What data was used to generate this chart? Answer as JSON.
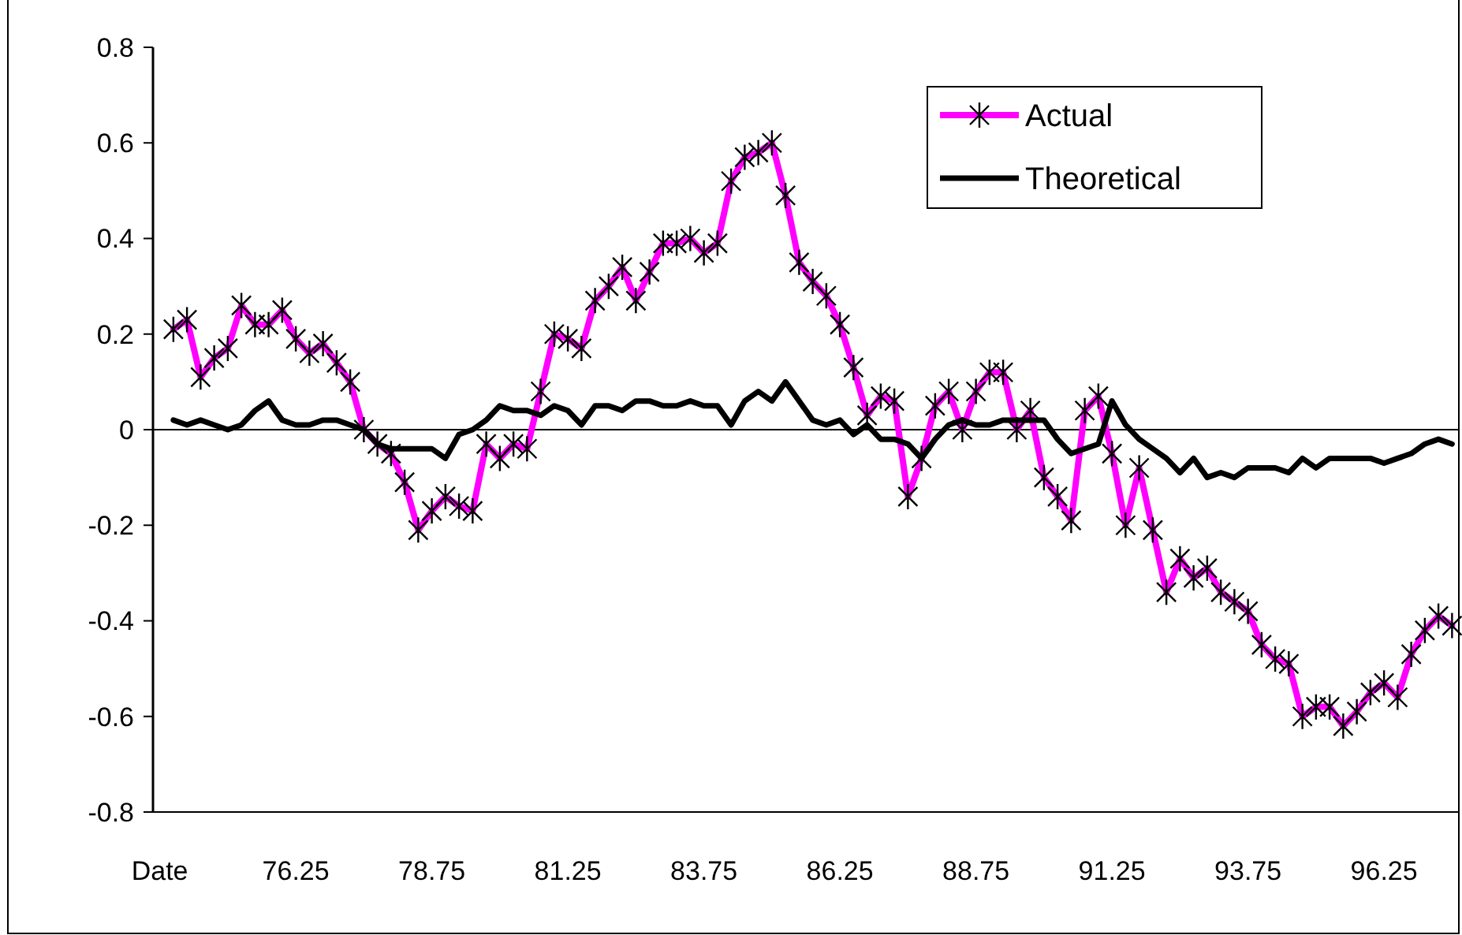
{
  "chart_data": {
    "type": "line",
    "categories": [
      "Date",
      null,
      null,
      null,
      null,
      null,
      null,
      null,
      null,
      null,
      "76.25",
      null,
      null,
      null,
      null,
      null,
      null,
      null,
      null,
      null,
      "78.75",
      null,
      null,
      null,
      null,
      null,
      null,
      null,
      null,
      null,
      "81.25",
      null,
      null,
      null,
      null,
      null,
      null,
      null,
      null,
      null,
      "83.75",
      null,
      null,
      null,
      null,
      null,
      null,
      null,
      null,
      null,
      "86.25",
      null,
      null,
      null,
      null,
      null,
      null,
      null,
      null,
      null,
      "88.75",
      null,
      null,
      null,
      null,
      null,
      null,
      null,
      null,
      null,
      "91.25",
      null,
      null,
      null,
      null,
      null,
      null,
      null,
      null,
      null,
      "93.75",
      null,
      null,
      null,
      null,
      null,
      null,
      null,
      null,
      null,
      "96.25",
      null,
      null,
      null,
      null,
      null
    ],
    "series": [
      {
        "name": "Actual",
        "color": "#ff00ff",
        "marker": "cross",
        "values": [
          null,
          0.21,
          0.23,
          0.11,
          0.15,
          0.17,
          0.26,
          0.22,
          0.22,
          0.25,
          0.19,
          0.16,
          0.18,
          0.14,
          0.1,
          0.0,
          -0.03,
          -0.05,
          -0.11,
          -0.21,
          -0.17,
          -0.14,
          -0.16,
          -0.17,
          -0.03,
          -0.06,
          -0.03,
          -0.04,
          0.08,
          0.2,
          0.19,
          0.17,
          0.27,
          0.3,
          0.34,
          0.27,
          0.33,
          0.39,
          0.39,
          0.4,
          0.37,
          0.39,
          0.52,
          0.57,
          0.58,
          0.6,
          0.49,
          0.35,
          0.31,
          0.28,
          0.22,
          0.13,
          0.03,
          0.07,
          0.06,
          -0.14,
          -0.06,
          0.05,
          0.08,
          0.0,
          0.08,
          0.12,
          0.12,
          0.0,
          0.04,
          -0.1,
          -0.14,
          -0.19,
          0.04,
          0.07,
          -0.05,
          -0.2,
          -0.08,
          -0.21,
          -0.34,
          -0.27,
          -0.31,
          -0.29,
          -0.34,
          -0.36,
          -0.38,
          -0.45,
          -0.48,
          -0.49,
          -0.6,
          -0.58,
          -0.58,
          -0.62,
          -0.59,
          -0.55,
          -0.53,
          -0.56,
          -0.47,
          -0.42,
          -0.39,
          -0.41
        ]
      },
      {
        "name": "Theoretical",
        "color": "#000000",
        "marker": "none",
        "values": [
          null,
          0.02,
          0.01,
          0.02,
          0.01,
          0.0,
          0.01,
          0.04,
          0.06,
          0.02,
          0.01,
          0.01,
          0.02,
          0.02,
          0.01,
          0.0,
          -0.03,
          -0.04,
          -0.04,
          -0.04,
          -0.04,
          -0.06,
          -0.01,
          0.0,
          0.02,
          0.05,
          0.04,
          0.04,
          0.03,
          0.05,
          0.04,
          0.01,
          0.05,
          0.05,
          0.04,
          0.06,
          0.06,
          0.05,
          0.05,
          0.06,
          0.05,
          0.05,
          0.01,
          0.06,
          0.08,
          0.06,
          0.1,
          0.06,
          0.02,
          0.01,
          0.02,
          -0.01,
          0.01,
          -0.02,
          -0.02,
          -0.03,
          -0.06,
          -0.02,
          0.01,
          0.02,
          0.01,
          0.01,
          0.02,
          0.02,
          0.02,
          0.02,
          -0.02,
          -0.05,
          -0.04,
          -0.03,
          0.06,
          0.01,
          -0.02,
          -0.04,
          -0.06,
          -0.09,
          -0.06,
          -0.1,
          -0.09,
          -0.1,
          -0.08,
          -0.08,
          -0.08,
          -0.09,
          -0.06,
          -0.08,
          -0.06,
          -0.06,
          -0.06,
          -0.06,
          -0.07,
          -0.06,
          -0.05,
          -0.03,
          -0.02,
          -0.03
        ]
      }
    ],
    "ylim": [
      -0.8,
      0.8
    ],
    "yticks": [
      -0.8,
      -0.6,
      -0.4,
      -0.2,
      0,
      0.2,
      0.4,
      0.6,
      0.8
    ],
    "ref_lines": [
      {
        "axis": "y",
        "value": 0
      }
    ],
    "grid": false,
    "legend": "top right",
    "line_style": "solid"
  }
}
